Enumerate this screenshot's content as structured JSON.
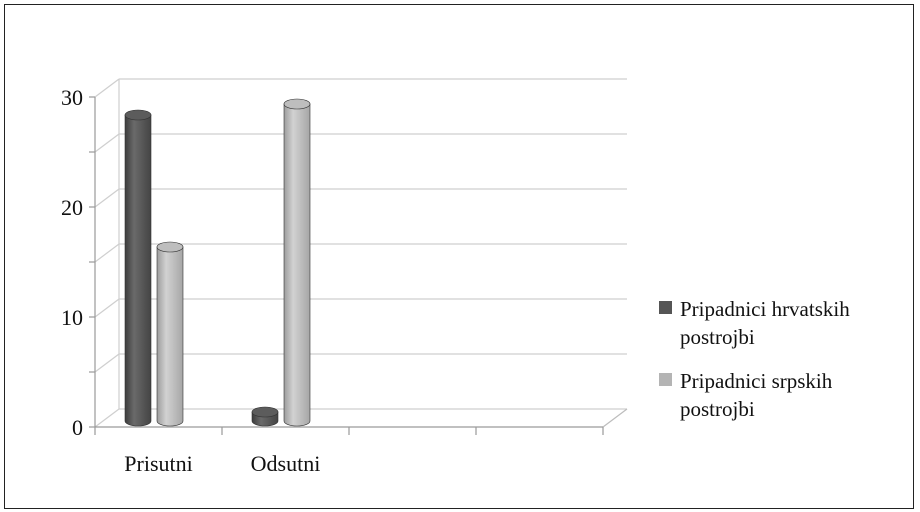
{
  "chart_data": {
    "type": "bar",
    "categories": [
      "Prisutni",
      "Odsutni"
    ],
    "series": [
      {
        "name": "Pripadnici hrvatskih postrojbi",
        "values": [
          28,
          1
        ],
        "color": "#555555"
      },
      {
        "name": "Pripadnici srpskih postrojbi",
        "values": [
          16,
          29
        ],
        "color": "#b4b4b4"
      }
    ],
    "y_ticks": [
      "0",
      "10",
      "20",
      "30"
    ],
    "ylim": [
      0,
      30
    ],
    "grid": true,
    "legend_position": "right",
    "style": "3d-cylinder"
  }
}
